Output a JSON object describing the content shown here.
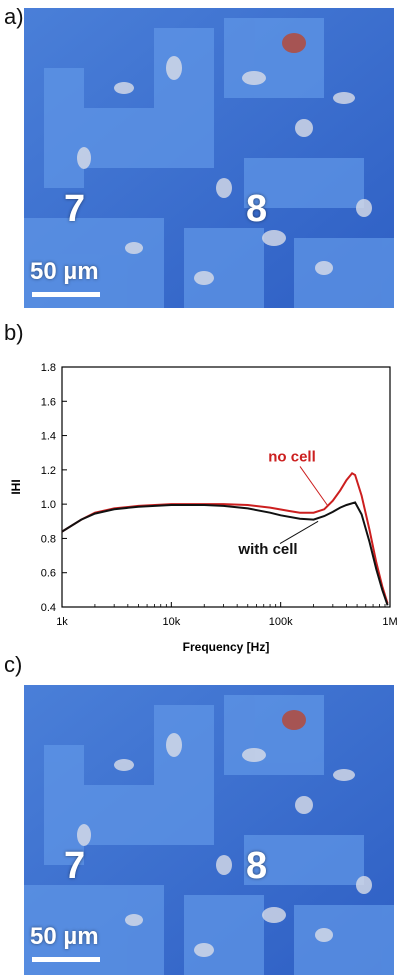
{
  "panels": {
    "a": {
      "label": "a)",
      "electrode_left": "7",
      "electrode_right": "8",
      "scale": "50 µm"
    },
    "b": {
      "label": "b)"
    },
    "c": {
      "label": "c)",
      "electrode_left": "7",
      "electrode_right": "8",
      "scale": "50 µm"
    }
  },
  "chart_data": {
    "type": "line",
    "xlabel": "Frequency [Hz]",
    "ylabel": "IHI",
    "xscale": "log",
    "xlim": [
      1000,
      1000000
    ],
    "ylim": [
      0.4,
      1.8
    ],
    "x_ticks": [
      {
        "value": 1000,
        "label": "1k"
      },
      {
        "value": 10000,
        "label": "10k"
      },
      {
        "value": 100000,
        "label": "100k"
      },
      {
        "value": 1000000,
        "label": "1M"
      }
    ],
    "y_ticks": [
      {
        "value": 0.4,
        "label": "0.4"
      },
      {
        "value": 0.6,
        "label": "0.6"
      },
      {
        "value": 0.8,
        "label": "0.8"
      },
      {
        "value": 1.0,
        "label": "1.0"
      },
      {
        "value": 1.2,
        "label": "1.2"
      },
      {
        "value": 1.4,
        "label": "1.4"
      },
      {
        "value": 1.6,
        "label": "1.6"
      },
      {
        "value": 1.8,
        "label": "1.8"
      }
    ],
    "series": [
      {
        "name": "no cell",
        "color": "#cc1f1f",
        "points": [
          [
            1000,
            0.84
          ],
          [
            1500,
            0.91
          ],
          [
            2000,
            0.95
          ],
          [
            3000,
            0.975
          ],
          [
            5000,
            0.99
          ],
          [
            10000,
            1.0
          ],
          [
            20000,
            1.0
          ],
          [
            30000,
            1.0
          ],
          [
            50000,
            0.995
          ],
          [
            80000,
            0.98
          ],
          [
            120000,
            0.96
          ],
          [
            150000,
            0.95
          ],
          [
            200000,
            0.95
          ],
          [
            250000,
            0.97
          ],
          [
            300000,
            1.02
          ],
          [
            350000,
            1.08
          ],
          [
            400000,
            1.14
          ],
          [
            450000,
            1.18
          ],
          [
            480000,
            1.17
          ],
          [
            550000,
            1.05
          ],
          [
            650000,
            0.85
          ],
          [
            750000,
            0.66
          ],
          [
            850000,
            0.52
          ],
          [
            950000,
            0.42
          ]
        ]
      },
      {
        "name": "with cell",
        "color": "#111111",
        "points": [
          [
            1000,
            0.84
          ],
          [
            1500,
            0.91
          ],
          [
            2000,
            0.945
          ],
          [
            3000,
            0.97
          ],
          [
            5000,
            0.985
          ],
          [
            10000,
            0.995
          ],
          [
            20000,
            0.995
          ],
          [
            30000,
            0.99
          ],
          [
            50000,
            0.975
          ],
          [
            80000,
            0.95
          ],
          [
            100000,
            0.935
          ],
          [
            150000,
            0.915
          ],
          [
            200000,
            0.91
          ],
          [
            250000,
            0.93
          ],
          [
            300000,
            0.955
          ],
          [
            350000,
            0.98
          ],
          [
            400000,
            0.995
          ],
          [
            480000,
            1.01
          ],
          [
            550000,
            0.94
          ],
          [
            650000,
            0.78
          ],
          [
            750000,
            0.62
          ],
          [
            850000,
            0.5
          ],
          [
            950000,
            0.41
          ]
        ]
      }
    ],
    "annotations": [
      "no cell",
      "with cell"
    ]
  }
}
